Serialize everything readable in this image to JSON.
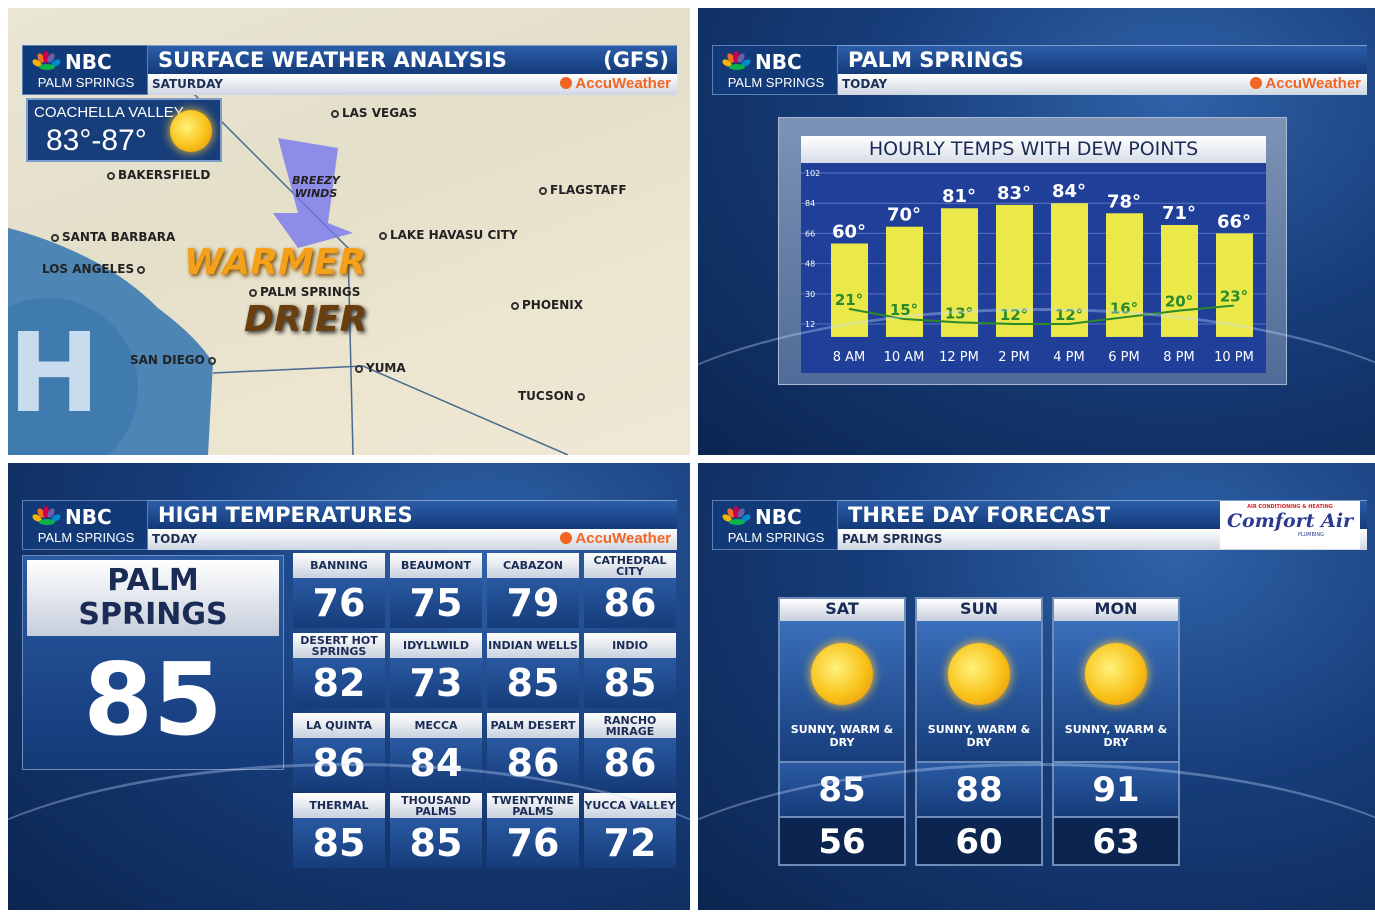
{
  "brand": {
    "network": "NBC",
    "station": "PALM SPRINGS",
    "partner": "AccuWeather",
    "sponsor": "Comfort Air",
    "sponsor_top": "AIR CONDITIONING & HEATING",
    "sponsor_bottom": "PLUMBING"
  },
  "colors": {
    "accent_orange": "#f26522",
    "bar_yellow": "#ebe84a",
    "dew_green": "#2a8a2a",
    "panel_blue": "#163c7a"
  },
  "panel1": {
    "title": "SURFACE WEATHER ANALYSIS",
    "model": "(GFS)",
    "subtitle": "SATURDAY",
    "badge": {
      "region": "COACHELLA VALLEY",
      "range": "83°-87°",
      "icon": "sun-icon"
    },
    "cities": [
      "LAS VEGAS",
      "BAKERSFIELD",
      "FLAGSTAFF",
      "SANTA BARBARA",
      "LAKE HAVASU CITY",
      "LOS ANGELES",
      "PALM SPRINGS",
      "PHOENIX",
      "SAN DIEGO",
      "YUMA",
      "TUCSON"
    ],
    "wind_label": "BREEZY WINDS",
    "callout1": "WARMER",
    "callout2": "DRIER",
    "pressure_symbol": "H"
  },
  "panel2": {
    "title": "PALM SPRINGS",
    "subtitle": "TODAY"
  },
  "chart_data": {
    "type": "bar",
    "title": "HOURLY TEMPS WITH DEW POINTS",
    "categories": [
      "8 AM",
      "10 AM",
      "12 PM",
      "2 PM",
      "4 PM",
      "6 PM",
      "8 PM",
      "10 PM"
    ],
    "series": [
      {
        "type": "bar",
        "values": [
          60,
          70,
          81,
          83,
          84,
          78,
          71,
          66
        ],
        "labels": [
          "60°",
          "70°",
          "81°",
          "83°",
          "84°",
          "78°",
          "71°",
          "66°"
        ]
      },
      {
        "type": "line",
        "values": [
          21,
          15,
          13,
          12,
          12,
          16,
          20,
          23
        ],
        "labels": [
          "21°",
          "15°",
          "13°",
          "12°",
          "12°",
          "16°",
          "20°",
          "23°"
        ]
      }
    ],
    "yticks": [
      102,
      84,
      66,
      48,
      30,
      12
    ],
    "ylim": [
      4,
      102
    ],
    "grid": true
  },
  "panel3": {
    "title": "HIGH TEMPERATURES",
    "subtitle": "TODAY",
    "main_city": "PALM SPRINGS",
    "main_temp": "85",
    "cities": [
      {
        "name": "BANNING",
        "temp": "76"
      },
      {
        "name": "BEAUMONT",
        "temp": "75"
      },
      {
        "name": "CABAZON",
        "temp": "79"
      },
      {
        "name": "CATHEDRAL CITY",
        "temp": "86"
      },
      {
        "name": "DESERT HOT SPRINGS",
        "temp": "82"
      },
      {
        "name": "IDYLLWILD",
        "temp": "73"
      },
      {
        "name": "INDIAN WELLS",
        "temp": "85"
      },
      {
        "name": "INDIO",
        "temp": "85"
      },
      {
        "name": "LA QUINTA",
        "temp": "86"
      },
      {
        "name": "MECCA",
        "temp": "84"
      },
      {
        "name": "PALM DESERT",
        "temp": "86"
      },
      {
        "name": "RANCHO MIRAGE",
        "temp": "86"
      },
      {
        "name": "THERMAL",
        "temp": "85"
      },
      {
        "name": "THOUSAND PALMS",
        "temp": "85"
      },
      {
        "name": "TWENTYNINE PALMS",
        "temp": "76"
      },
      {
        "name": "YUCCA VALLEY",
        "temp": "72"
      }
    ]
  },
  "panel4": {
    "title": "THREE DAY FORECAST",
    "subtitle": "PALM SPRINGS",
    "days": [
      {
        "day": "SAT",
        "icon": "sun-icon",
        "condition": "SUNNY, WARM & DRY",
        "high": "85",
        "low": "56"
      },
      {
        "day": "SUN",
        "icon": "sun-icon",
        "condition": "SUNNY, WARM & DRY",
        "high": "88",
        "low": "60"
      },
      {
        "day": "MON",
        "icon": "sun-icon",
        "condition": "SUNNY, WARM & DRY",
        "high": "91",
        "low": "63"
      }
    ]
  }
}
